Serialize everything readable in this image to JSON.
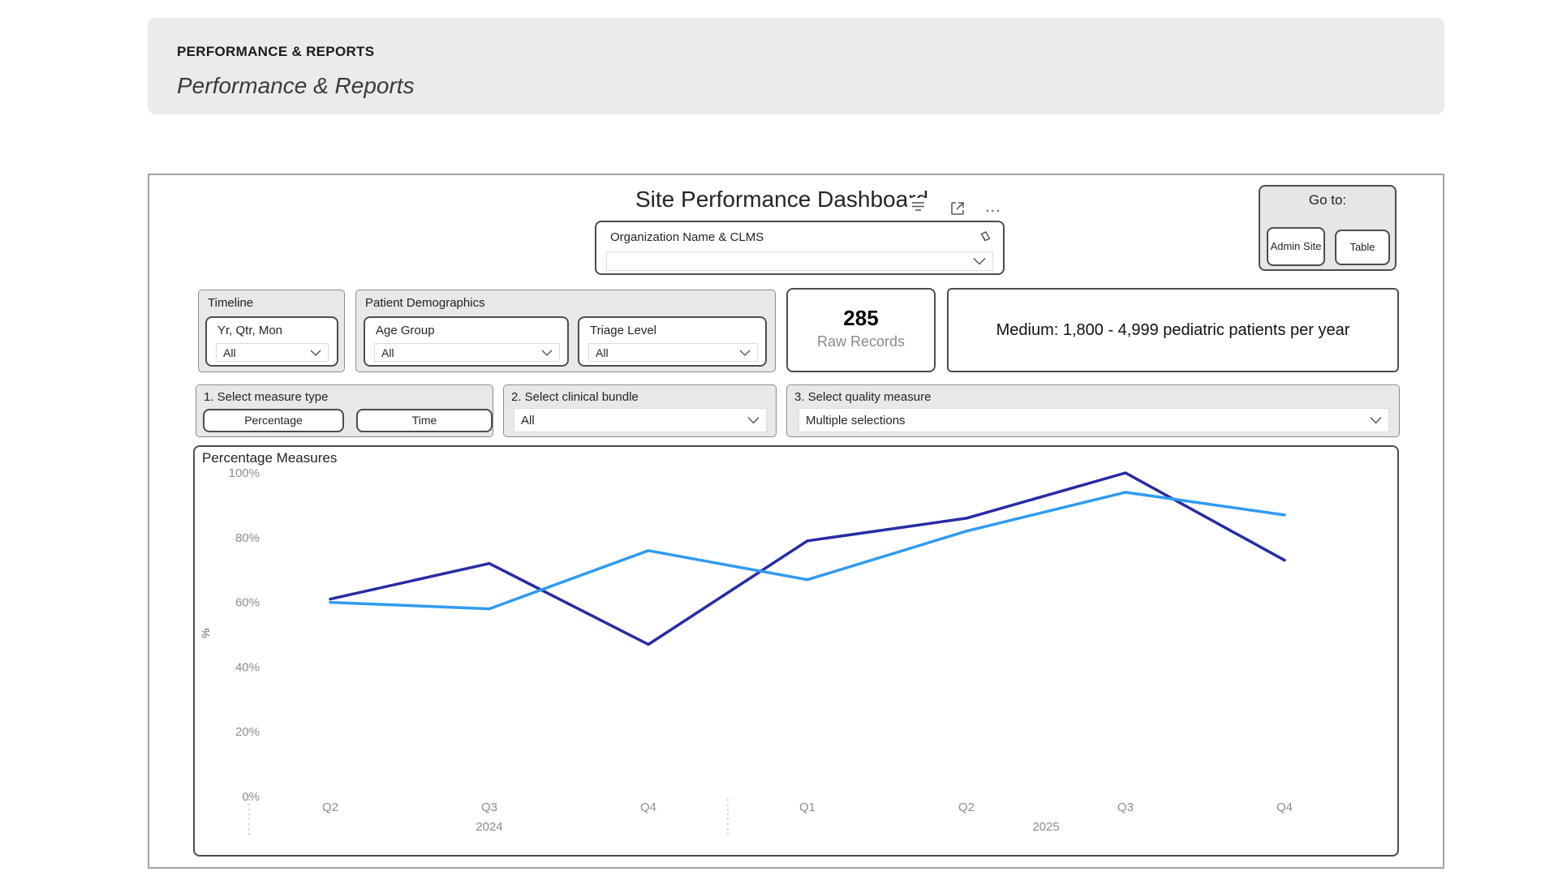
{
  "page_header": {
    "eyebrow": "PERFORMANCE & REPORTS",
    "title": "Performance & Reports"
  },
  "dashboard": {
    "title": "Site Performance Dashboard",
    "more_options_glyph": "..."
  },
  "goto": {
    "label": "Go to:",
    "admin_site": "Admin Site",
    "table": "Table"
  },
  "org_slicer": {
    "label": "Organization Name & CLMS",
    "value": ""
  },
  "filters": {
    "timeline": {
      "group_label": "Timeline",
      "slicer_label": "Yr, Qtr, Mon",
      "value": "All"
    },
    "demographics": {
      "group_label": "Patient Demographics",
      "age_group": {
        "label": "Age Group",
        "value": "All"
      },
      "triage_level": {
        "label": "Triage Level",
        "value": "All"
      }
    }
  },
  "cards": {
    "raw_records": {
      "value": "285",
      "label": "Raw Records"
    },
    "volume": {
      "text": "Medium: 1,800 - 4,999 pediatric patients per year"
    }
  },
  "selectors": {
    "measure_type": {
      "label": "1. Select measure type",
      "options": [
        "Percentage",
        "Time"
      ]
    },
    "clinical_bundle": {
      "label": "2. Select clinical bundle",
      "value": "All"
    },
    "quality_measure": {
      "label": "3. Select quality measure",
      "value": "Multiple selections"
    }
  },
  "chart_data": {
    "type": "line",
    "title": "Percentage Measures",
    "xlabel": "",
    "ylabel": "%",
    "ylim": [
      0,
      100
    ],
    "yticks": [
      0,
      20,
      40,
      60,
      80,
      100
    ],
    "ytick_format": "percent",
    "grid": false,
    "legend": "none",
    "categories": [
      "Q2",
      "Q3",
      "Q4",
      "Q1",
      "Q2",
      "Q3",
      "Q4"
    ],
    "year_groups": [
      {
        "label": "2024",
        "span": [
          0,
          2
        ]
      },
      {
        "label": "2025",
        "span": [
          3,
          6
        ]
      }
    ],
    "series": [
      {
        "name": "dark-blue",
        "color": "#262CA5",
        "values": [
          61,
          72,
          47,
          79,
          86,
          100,
          73
        ]
      },
      {
        "name": "light-blue",
        "color": "#2F9BF1",
        "values": [
          60,
          58,
          76,
          67,
          82,
          94,
          87
        ]
      }
    ]
  },
  "colors": {
    "panel_border": "#A3A3A3",
    "group_bg": "#E8E8E8",
    "slicer_border": "#4d4d4d",
    "series_dark": "#262CA5",
    "series_light": "#2F9BF1"
  }
}
